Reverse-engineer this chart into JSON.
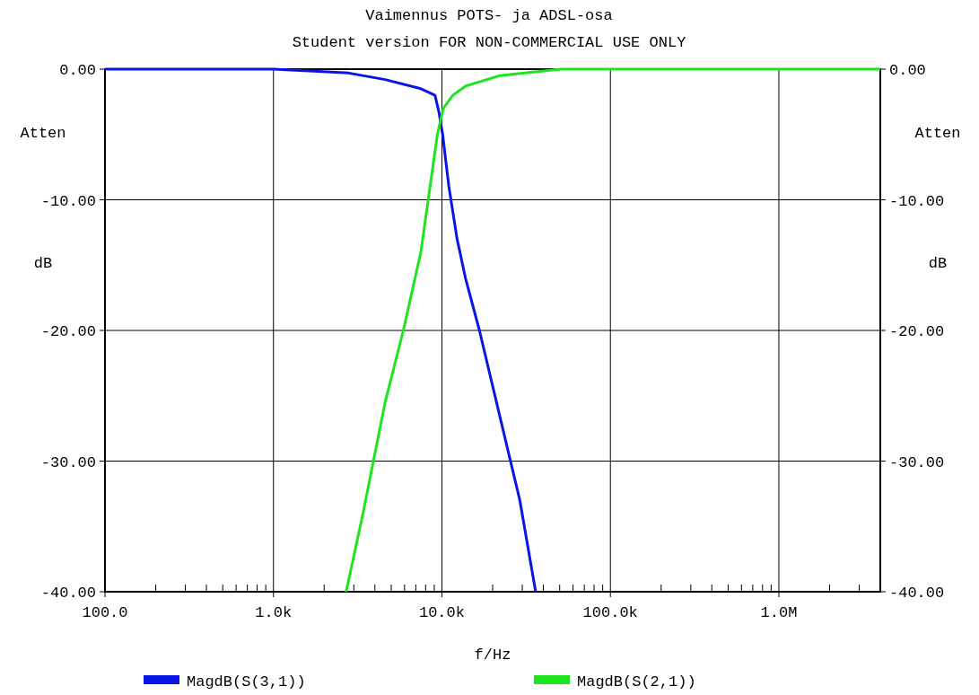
{
  "chart_data": {
    "type": "line",
    "title": "Vaimennus POTS- ja ADSL-osa",
    "subtitle": "Student version FOR NON-COMMERCIAL USE ONLY",
    "xlabel": "f/Hz",
    "ylabel": "Atten dB",
    "y2label": "Atten dB",
    "log": "x",
    "grid": true,
    "legend": "bottom",
    "line_style": "solid",
    "xlim": [
      100,
      4000000
    ],
    "xticks": [
      {
        "value": 100,
        "label": "100.0"
      },
      {
        "value": 1000,
        "label": "1.0k"
      },
      {
        "value": 10000,
        "label": "10.0k"
      },
      {
        "value": 100000,
        "label": "100.0k"
      },
      {
        "value": 1000000,
        "label": "1.0M"
      }
    ],
    "ylim": [
      -40,
      0
    ],
    "yticks": [
      {
        "value": -40,
        "label": "-40.00"
      },
      {
        "value": -30,
        "label": "-30.00"
      },
      {
        "value": -20,
        "label": "-20.00"
      },
      {
        "value": -10,
        "label": "-10.00"
      },
      {
        "value": 0,
        "label": "0.00"
      }
    ],
    "y2lim": [
      -40,
      0
    ],
    "y2ticks": [
      {
        "value": -40,
        "label": "-40.00"
      },
      {
        "value": -30,
        "label": "-30.00"
      },
      {
        "value": -20,
        "label": "-20.00"
      },
      {
        "value": -10,
        "label": "-10.00"
      },
      {
        "value": 0,
        "label": "0.00"
      }
    ],
    "series": [
      {
        "name": "MagdB(S(3,1))",
        "color": "#0a14e6",
        "x": [
          100,
          1000,
          2800,
          4600,
          7500,
          9100,
          9600,
          10100,
          11000,
          12300,
          13800,
          16700,
          22000,
          29000,
          36000
        ],
        "values": [
          0,
          0,
          -0.3,
          -0.8,
          -1.5,
          -2,
          -3.3,
          -5,
          -9,
          -13,
          -16,
          -20,
          -26.5,
          -33,
          -40
        ]
      },
      {
        "name": "MagdB(S(2,1))",
        "color": "#1ee61e",
        "x": [
          2700,
          3400,
          4600,
          5900,
          7500,
          8500,
          9400,
          10200,
          11600,
          13800,
          22000,
          51000,
          4000000
        ],
        "values": [
          -40,
          -34,
          -25.5,
          -20,
          -14,
          -9,
          -5,
          -3,
          -2,
          -1.3,
          -0.5,
          0,
          0
        ]
      }
    ]
  }
}
